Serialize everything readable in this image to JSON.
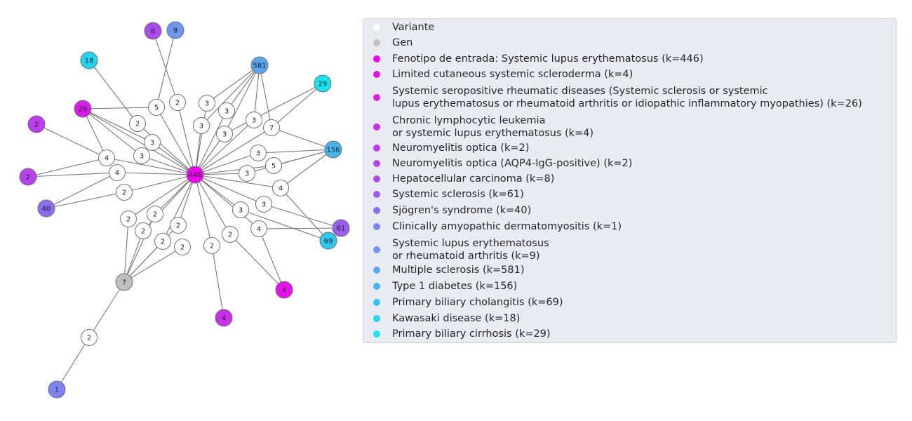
{
  "graph": {
    "edge_color": "#777777",
    "variant_color": "#ffffff",
    "gene_color": "#c0c0c0",
    "nodes": [
      {
        "id": "center",
        "label": "446",
        "color": "#f000f0"
      },
      {
        "id": "gene7",
        "label": "7",
        "color": "#c0c0c0"
      },
      {
        "id": "p581",
        "label": "581",
        "color": "#5aa5f0"
      },
      {
        "id": "p156",
        "label": "156",
        "color": "#45b5f0"
      },
      {
        "id": "p69",
        "label": "69",
        "color": "#30c8f0"
      },
      {
        "id": "p61",
        "label": "61",
        "color": "#9b5cf0"
      },
      {
        "id": "p40",
        "label": "40",
        "color": "#8b6ef0"
      },
      {
        "id": "p29",
        "label": "29",
        "color": "#18e3f0"
      },
      {
        "id": "p26",
        "label": "26",
        "color": "#d81be8"
      },
      {
        "id": "p18",
        "label": "18",
        "color": "#22d5f0"
      },
      {
        "id": "p9",
        "label": "9",
        "color": "#6e95f0"
      },
      {
        "id": "p8",
        "label": "8",
        "color": "#a84cf0"
      },
      {
        "id": "p4a",
        "label": "4",
        "color": "#e610ea"
      },
      {
        "id": "p4b",
        "label": "4",
        "color": "#c830ea"
      },
      {
        "id": "p2a",
        "label": "2",
        "color": "#bd3ced"
      },
      {
        "id": "p2b",
        "label": "2",
        "color": "#b443ee"
      },
      {
        "id": "p1",
        "label": "1",
        "color": "#7d84f0"
      },
      {
        "id": "v1",
        "label": "5",
        "color": "#ffffff"
      },
      {
        "id": "v2",
        "label": "2",
        "color": "#ffffff"
      },
      {
        "id": "v3",
        "label": "2",
        "color": "#ffffff"
      },
      {
        "id": "v4",
        "label": "3",
        "color": "#ffffff"
      },
      {
        "id": "v5",
        "label": "3",
        "color": "#ffffff"
      },
      {
        "id": "v6",
        "label": "4",
        "color": "#ffffff"
      },
      {
        "id": "v7",
        "label": "4",
        "color": "#ffffff"
      },
      {
        "id": "v8",
        "label": "2",
        "color": "#ffffff"
      },
      {
        "id": "v9",
        "label": "3",
        "color": "#ffffff"
      },
      {
        "id": "v10",
        "label": "3",
        "color": "#ffffff"
      },
      {
        "id": "v11",
        "label": "3",
        "color": "#ffffff"
      },
      {
        "id": "v12",
        "label": "3",
        "color": "#ffffff"
      },
      {
        "id": "v13",
        "label": "3",
        "color": "#ffffff"
      },
      {
        "id": "v14",
        "label": "7",
        "color": "#ffffff"
      },
      {
        "id": "v15",
        "label": "3",
        "color": "#ffffff"
      },
      {
        "id": "v16",
        "label": "5",
        "color": "#ffffff"
      },
      {
        "id": "v17",
        "label": "3",
        "color": "#ffffff"
      },
      {
        "id": "v18",
        "label": "4",
        "color": "#ffffff"
      },
      {
        "id": "v19",
        "label": "3",
        "color": "#ffffff"
      },
      {
        "id": "v20",
        "label": "3",
        "color": "#ffffff"
      },
      {
        "id": "v21",
        "label": "4",
        "color": "#ffffff"
      },
      {
        "id": "v22",
        "label": "2",
        "color": "#ffffff"
      },
      {
        "id": "v23",
        "label": "2",
        "color": "#ffffff"
      },
      {
        "id": "v24",
        "label": "2",
        "color": "#ffffff"
      },
      {
        "id": "v25",
        "label": "2",
        "color": "#ffffff"
      },
      {
        "id": "v26",
        "label": "2",
        "color": "#ffffff"
      },
      {
        "id": "v27",
        "label": "2",
        "color": "#ffffff"
      },
      {
        "id": "v28",
        "label": "2",
        "color": "#ffffff"
      },
      {
        "id": "v29",
        "label": "2",
        "color": "#ffffff"
      },
      {
        "id": "v30",
        "label": "2",
        "color": "#ffffff"
      }
    ],
    "edges": [
      [
        "center",
        "v1"
      ],
      [
        "center",
        "v2"
      ],
      [
        "center",
        "v3"
      ],
      [
        "center",
        "v4"
      ],
      [
        "center",
        "v5"
      ],
      [
        "center",
        "v6"
      ],
      [
        "center",
        "v7"
      ],
      [
        "center",
        "v8"
      ],
      [
        "center",
        "v9"
      ],
      [
        "center",
        "v10"
      ],
      [
        "center",
        "v11"
      ],
      [
        "center",
        "v12"
      ],
      [
        "center",
        "v13"
      ],
      [
        "center",
        "v14"
      ],
      [
        "center",
        "v15"
      ],
      [
        "center",
        "v16"
      ],
      [
        "center",
        "v17"
      ],
      [
        "center",
        "v18"
      ],
      [
        "center",
        "v19"
      ],
      [
        "center",
        "v20"
      ],
      [
        "center",
        "v21"
      ],
      [
        "center",
        "v22"
      ],
      [
        "center",
        "v23"
      ],
      [
        "center",
        "v24"
      ],
      [
        "center",
        "v25"
      ],
      [
        "center",
        "v26"
      ],
      [
        "center",
        "v27"
      ],
      [
        "center",
        "v28"
      ],
      [
        "center",
        "p26"
      ],
      [
        "p9",
        "v1"
      ],
      [
        "p18",
        "v3"
      ],
      [
        "p8",
        "v2"
      ],
      [
        "p26",
        "v1"
      ],
      [
        "p26",
        "v4"
      ],
      [
        "p26",
        "v5"
      ],
      [
        "p26",
        "v6"
      ],
      [
        "p2a",
        "v6"
      ],
      [
        "p2b",
        "v6"
      ],
      [
        "p2b",
        "v7"
      ],
      [
        "p40",
        "v7"
      ],
      [
        "p40",
        "v8"
      ],
      [
        "p581",
        "v9"
      ],
      [
        "p581",
        "v10"
      ],
      [
        "p581",
        "v11"
      ],
      [
        "p581",
        "v12"
      ],
      [
        "p581",
        "v13"
      ],
      [
        "p581",
        "v14"
      ],
      [
        "p29",
        "v14"
      ],
      [
        "p29",
        "v12"
      ],
      [
        "v14",
        "p156"
      ],
      [
        "p156",
        "v15"
      ],
      [
        "p156",
        "v16"
      ],
      [
        "p156",
        "v17"
      ],
      [
        "p156",
        "v18"
      ],
      [
        "v18",
        "p69"
      ],
      [
        "v19",
        "p61"
      ],
      [
        "v20",
        "p69"
      ],
      [
        "v21",
        "p61"
      ],
      [
        "v21",
        "p4a"
      ],
      [
        "v22",
        "p4a"
      ],
      [
        "v23",
        "p4b"
      ],
      [
        "gene7",
        "v24"
      ],
      [
        "gene7",
        "v25"
      ],
      [
        "gene7",
        "v26"
      ],
      [
        "gene7",
        "v27"
      ],
      [
        "gene7",
        "v28"
      ],
      [
        "gene7",
        "v29"
      ],
      [
        "gene7",
        "v30"
      ],
      [
        "v30",
        "p1"
      ]
    ]
  },
  "legend": {
    "items": [
      {
        "label": "Variante",
        "color": "#ffffff"
      },
      {
        "label": "Gen",
        "color": "#c0c0c0"
      },
      {
        "label": "Fenotipo de entrada: Systemic lupus erythematosus (k=446)",
        "color": "#f000f0"
      },
      {
        "label": "Limited cutaneous systemic scleroderma (k=4)",
        "color": "#e610ea"
      },
      {
        "label": "Systemic seropositive rheumatic diseases (Systemic sclerosis or systemic\nlupus erythematosus or rheumatoid arthritis or idiopathic inflammatory myopathies) (k=26)",
        "color": "#d81be8"
      },
      {
        "label": "Chronic lymphocytic leukemia\nor systemic lupus erythematosus (k=4)",
        "color": "#c830ea"
      },
      {
        "label": "Neuromyelitis optica (k=2)",
        "color": "#bd3ced"
      },
      {
        "label": "Neuromyelitis optica (AQP4-IgG-positive) (k=2)",
        "color": "#b443ee"
      },
      {
        "label": "Hepatocellular carcinoma (k=8)",
        "color": "#a84cf0"
      },
      {
        "label": "Systemic sclerosis (k=61)",
        "color": "#9b5cf0"
      },
      {
        "label": "Sjögren's syndrome (k=40)",
        "color": "#8b6ef0"
      },
      {
        "label": "Clinically amyopathic dermatomyositis (k=1)",
        "color": "#7d84f0"
      },
      {
        "label": "Systemic lupus erythematosus\nor rheumatoid arthritis (k=9)",
        "color": "#6e95f0"
      },
      {
        "label": "Multiple sclerosis (k=581)",
        "color": "#5aa5f0"
      },
      {
        "label": "Type 1 diabetes (k=156)",
        "color": "#45b5f0"
      },
      {
        "label": "Primary biliary cholangitis (k=69)",
        "color": "#30c8f0"
      },
      {
        "label": "Kawasaki disease (k=18)",
        "color": "#22d5f0"
      },
      {
        "label": "Primary biliary cirrhosis (k=29)",
        "color": "#18e3f0"
      }
    ]
  }
}
